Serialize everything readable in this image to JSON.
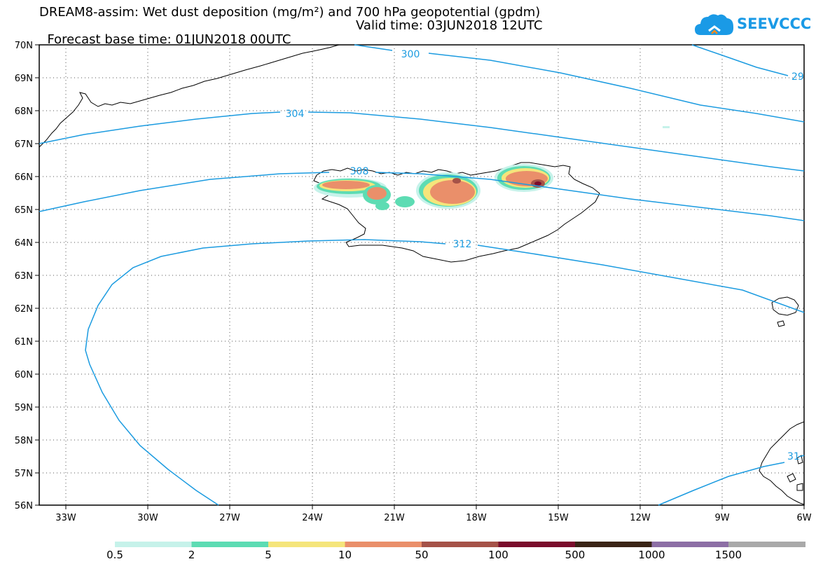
{
  "header": {
    "title_line1": "DREAM8-assim: Wet dust deposition (mg/m²) and 700 hPa geopotential (gpdm)",
    "base_time": "Forecast base time: 01JUN2018 00UTC",
    "valid_time": "Valid time: 03JUN2018 12UTC"
  },
  "logo": {
    "text": "SEEVCCC",
    "icon": "cloud-icon",
    "color": "#1a9ae6"
  },
  "map": {
    "lat_labels": [
      "70N",
      "69N",
      "68N",
      "67N",
      "66N",
      "65N",
      "64N",
      "63N",
      "62N",
      "61N",
      "60N",
      "59N",
      "58N",
      "57N",
      "56N"
    ],
    "lon_labels": [
      "33W",
      "30W",
      "27W",
      "24W",
      "21W",
      "18W",
      "15W",
      "12W",
      "9W",
      "6W"
    ],
    "contour_color": "#1b9be0",
    "contour_labels": [
      "300",
      "29",
      "304",
      "308",
      "312",
      "31"
    ]
  },
  "legend": {
    "colors": [
      "#c6f2ea",
      "#5ddcb3",
      "#f5e57b",
      "#ea8f6a",
      "#a55248",
      "#7a0d2c",
      "#3a2416",
      "#8d6fa5",
      "#a9a9a9"
    ],
    "labels": [
      "0.5",
      "2",
      "5",
      "10",
      "50",
      "100",
      "500",
      "1000",
      "1500"
    ]
  }
}
